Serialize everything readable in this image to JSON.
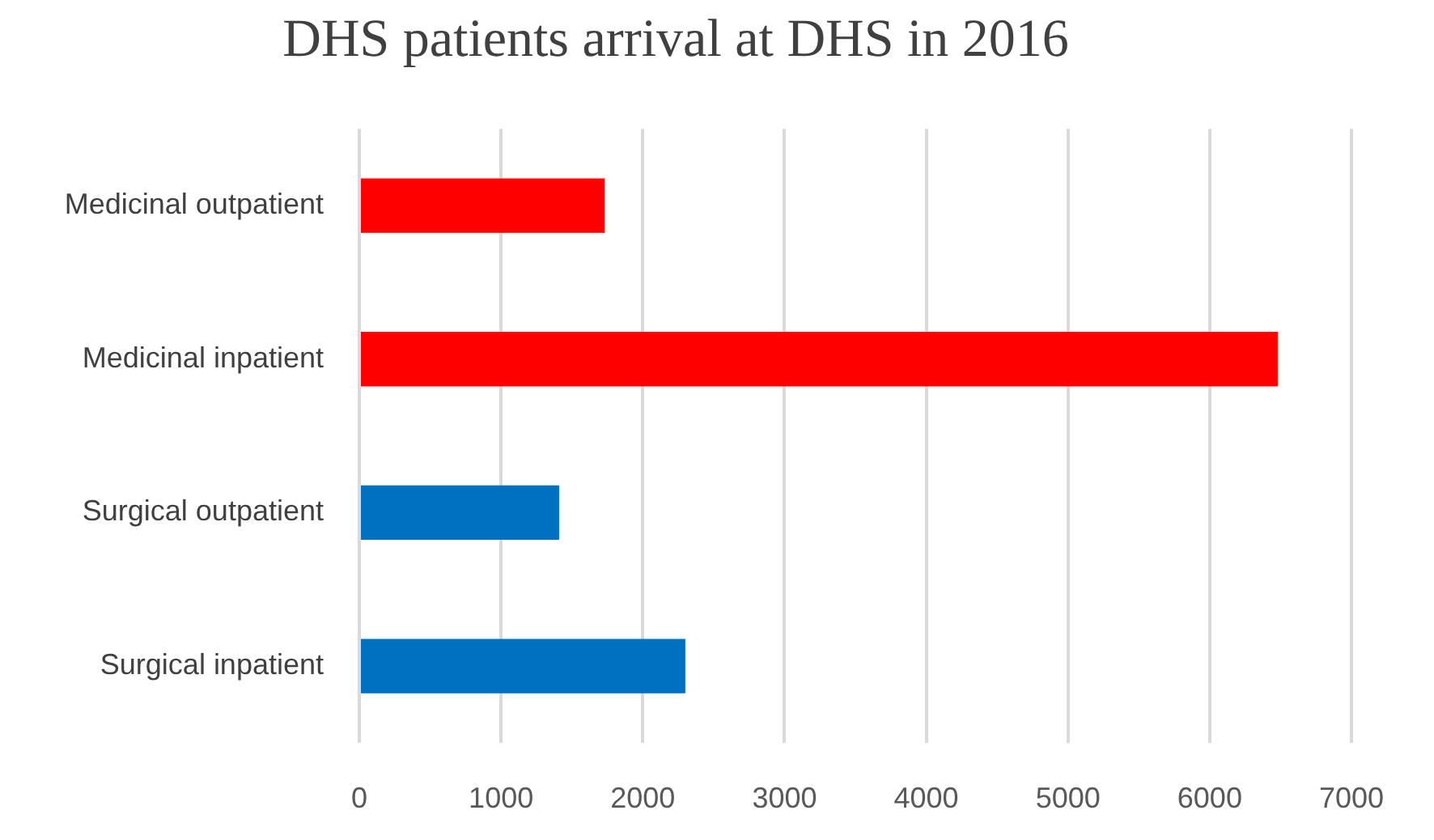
{
  "chart_data": {
    "type": "bar",
    "orientation": "horizontal",
    "title": "DHS patients arrival at DHS in 2016",
    "categories": [
      "Medicinal outpatient",
      "Medicinal inpatient",
      "Surgical outpatient",
      "Surgical inpatient"
    ],
    "values": [
      1730,
      6480,
      1410,
      2300
    ],
    "colors": [
      "#ff0000",
      "#ff0000",
      "#0070c0",
      "#0070c0"
    ],
    "xlim": [
      0,
      7000
    ],
    "xticks": [
      0,
      1000,
      2000,
      3000,
      4000,
      5000,
      6000,
      7000
    ],
    "grid": "x"
  }
}
